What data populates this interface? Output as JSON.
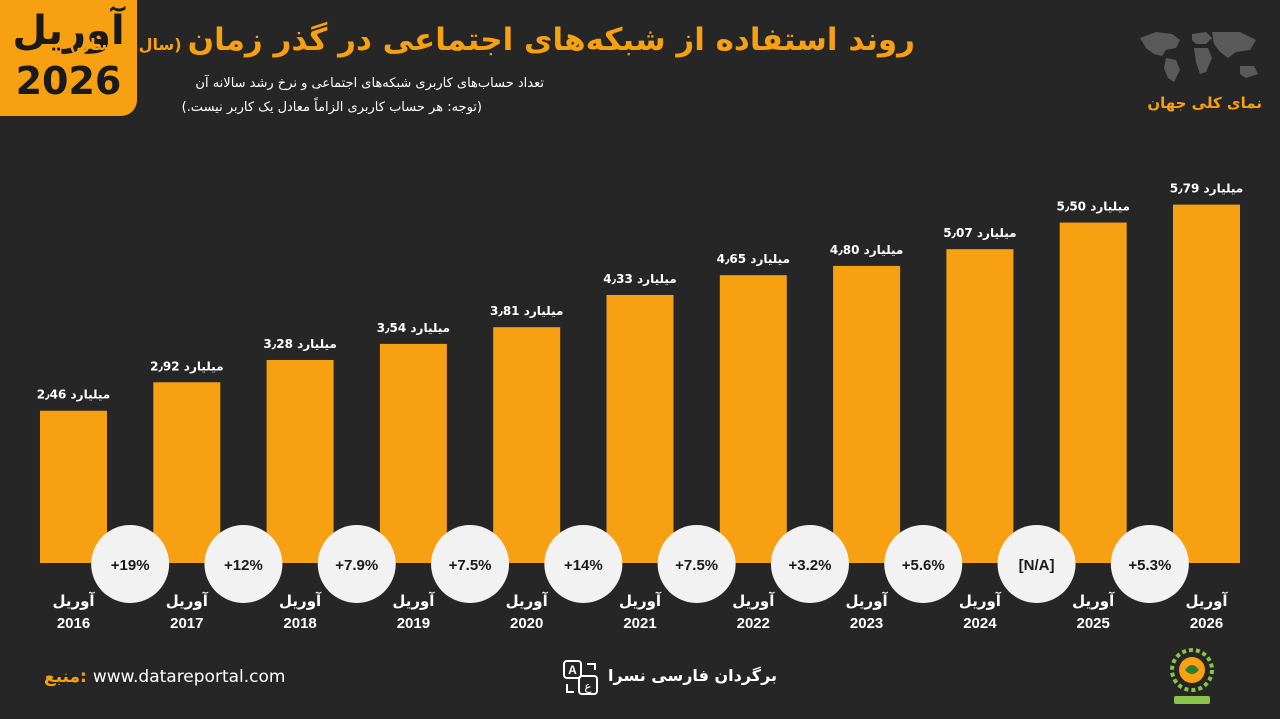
{
  "badge": {
    "line1": "آوریل",
    "line2": "2026"
  },
  "header": {
    "title": "روند استفاده از شبکه‌های اجتماعی در گذر زمان",
    "title_paren": "(سال به سال)",
    "subtitle": "تعداد حساب‌های کاربری شبکه‌های اجتماعی و نرخ رشد سالانه آن",
    "note": "(توجه: هر حساب کاربری الزاماً معادل یک کاربر نیست.)",
    "region": "نمای کلی جهان",
    "map_icon": "world-map-icon"
  },
  "footer": {
    "source_label": "منبع:",
    "source_url": "www.datareportal.com",
    "translator": "برگردان فارسی نسرا",
    "translate_icon": "translate-icon",
    "logo_icon": "nasra-logo-icon"
  },
  "colors": {
    "accent": "#f6a012",
    "background": "#262626",
    "bubble": "#f2f2f2",
    "text_dark": "#1a1a1a"
  },
  "chart_data": {
    "type": "bar",
    "title": "روند استفاده از شبکه‌های اجتماعی در گذر زمان",
    "month_label": "آوریل",
    "categories": [
      "2016",
      "2017",
      "2018",
      "2019",
      "2020",
      "2021",
      "2022",
      "2023",
      "2024",
      "2025",
      "2026"
    ],
    "values": [
      2.46,
      2.92,
      3.28,
      3.54,
      3.81,
      4.33,
      4.65,
      4.8,
      5.07,
      5.5,
      5.79
    ],
    "value_labels": [
      "2٫46",
      "2٫92",
      "3٫28",
      "3٫54",
      "3٫81",
      "4٫33",
      "4٫65",
      "4٫80",
      "5٫07",
      "5٫50",
      "5٫79"
    ],
    "unit": "میلیارد",
    "growth_rates": [
      "+19%",
      "+12%",
      "+7.9%",
      "+7.5%",
      "+14%",
      "+7.5%",
      "+3.2%",
      "+5.6%",
      "[N/A]",
      "+5.3%"
    ],
    "ylim": [
      0,
      6.22
    ],
    "grid": false,
    "legend": "none"
  }
}
